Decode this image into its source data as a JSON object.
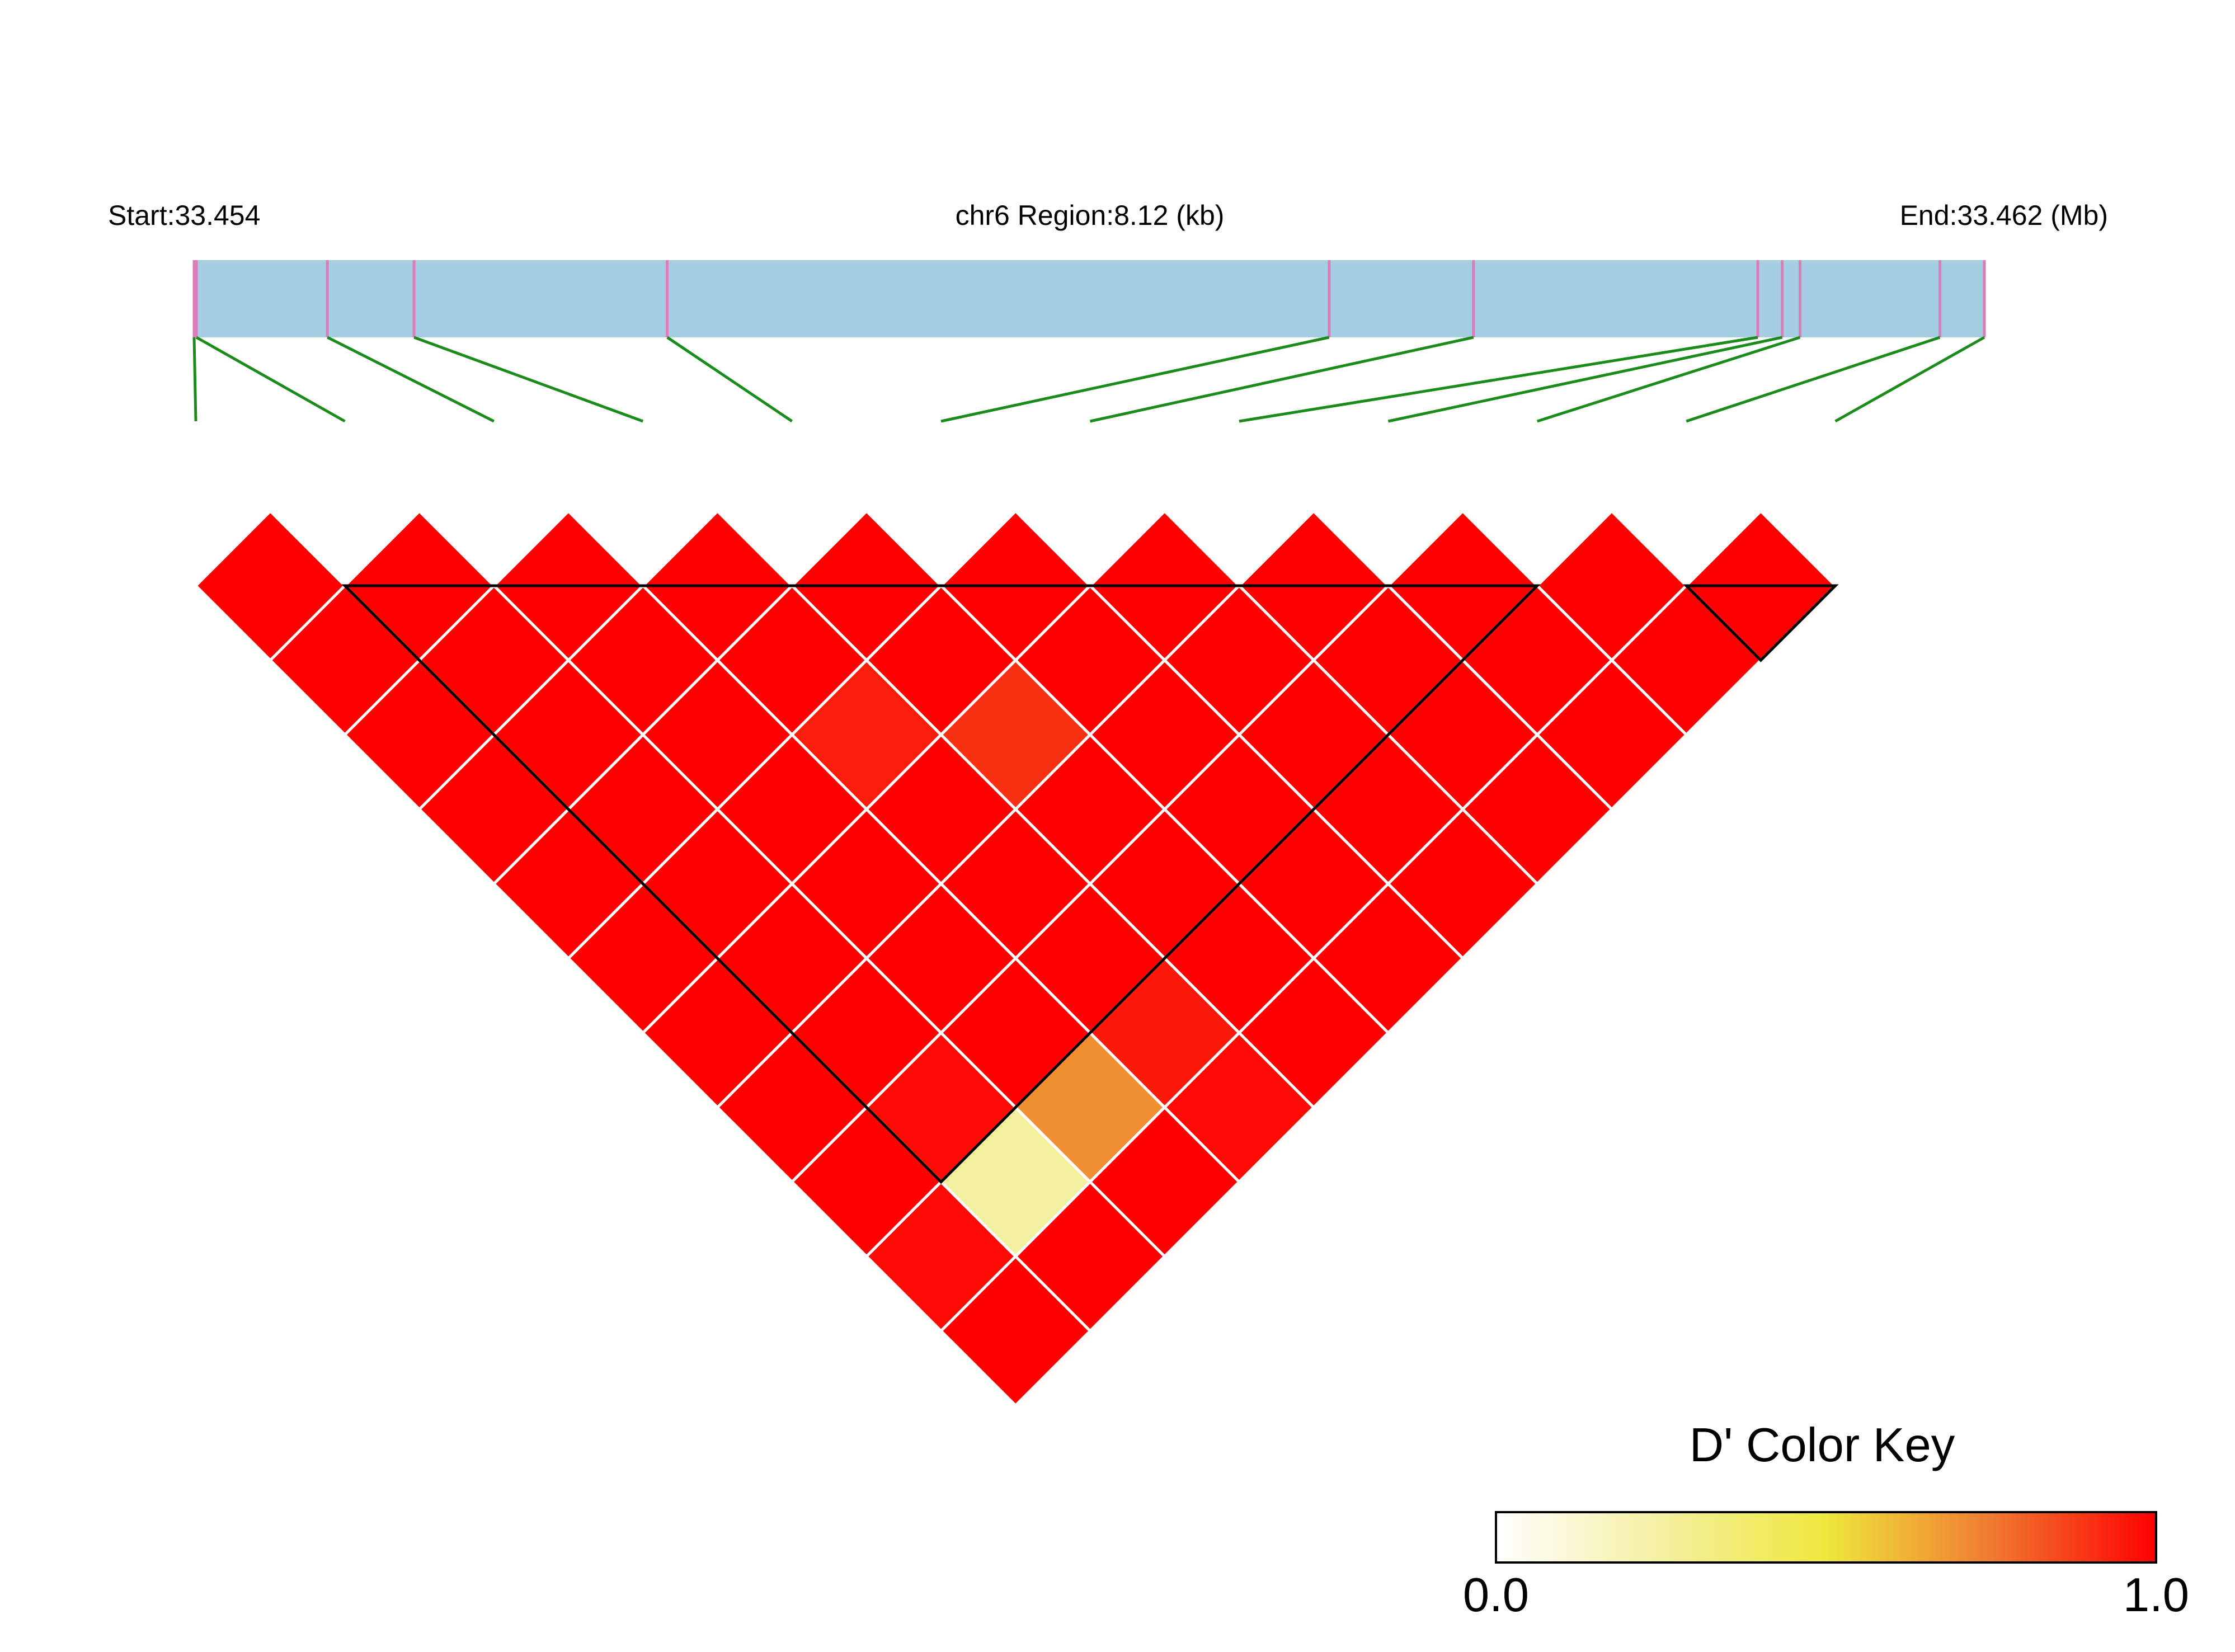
{
  "chart_data": {
    "type": "heatmap",
    "region": {
      "start_label": "Start:33.454",
      "center_label": "chr6 Region:8.12 (kb)",
      "end_label": "End:33.462 (Mb)",
      "start_mb": 33.454,
      "end_mb": 33.462,
      "length_kb": 8.12
    },
    "snp_count": 12,
    "snp_positions_mb": [
      33.454,
      33.45401,
      33.4546,
      33.45499,
      33.45613,
      33.45911,
      33.45976,
      33.46104,
      33.46115,
      33.46123,
      33.46186,
      33.46206
    ],
    "dprime_matrix": [
      [
        1,
        1,
        1,
        1,
        1,
        1,
        1,
        1,
        1,
        1,
        1
      ],
      [
        1,
        1,
        1,
        1,
        1,
        1,
        1,
        1,
        1,
        1
      ],
      [
        1,
        1,
        1,
        0.94,
        0.9,
        1,
        1,
        1,
        1
      ],
      [
        1,
        1,
        1,
        1,
        1,
        1,
        1,
        1
      ],
      [
        1,
        1,
        1,
        1,
        1,
        1,
        1
      ],
      [
        1,
        1,
        1,
        1,
        1,
        1
      ],
      [
        1,
        1,
        1,
        0.95,
        1
      ],
      [
        1,
        0.98,
        0.7,
        0.98
      ],
      [
        1,
        0.25,
        1
      ],
      [
        0.98,
        1
      ],
      [
        1
      ]
    ],
    "blocks": [
      {
        "first_snp": 2,
        "last_snp": 10
      },
      {
        "first_snp": 11,
        "last_snp": 12
      }
    ],
    "color_key": {
      "title": "D' Color Key",
      "min_label": "0.0",
      "max_label": "1.0",
      "stops": [
        "#ffffff",
        "#f5f0a0",
        "#eee83c",
        "#f07a30",
        "#ff0000"
      ]
    },
    "colors": {
      "chromosome_bar": "#a6cee3",
      "snp_tick": "#e07ab8",
      "connector": "#1a8c1a",
      "cell_border": "#ffffff",
      "block_outline": "#000000"
    }
  }
}
